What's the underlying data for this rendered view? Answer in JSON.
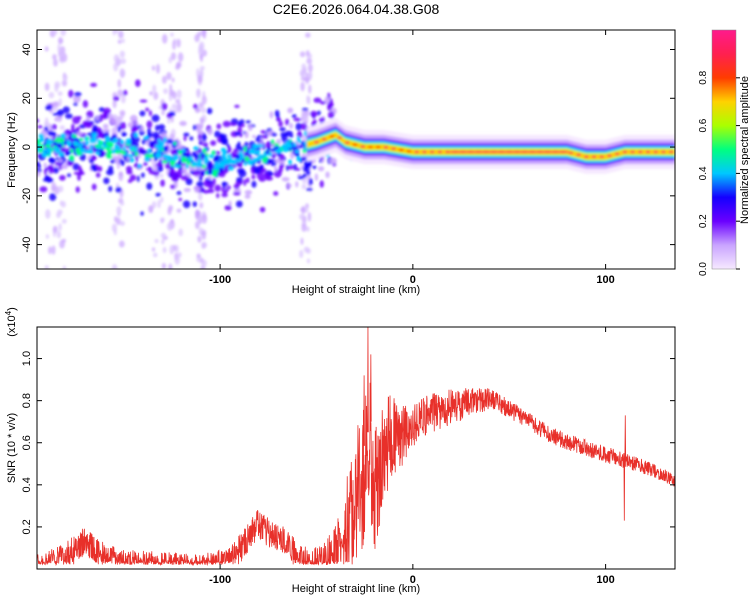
{
  "figure_title": "C2E6.2026.064.04.38.G08",
  "chart_data": [
    {
      "type": "heatmap",
      "panel": "top",
      "xlabel": "Height of straight line (km)",
      "ylabel": "Frequency (Hz)",
      "xlim": [
        -195,
        136
      ],
      "ylim": [
        -50,
        48
      ],
      "xticks": [
        -100,
        0,
        100
      ],
      "xtick_labels": [
        "-100",
        "0",
        "100"
      ],
      "yticks": [
        -40,
        -20,
        0,
        20,
        40
      ],
      "ytick_labels": [
        "-40",
        "-20",
        "0",
        "20",
        "40"
      ],
      "colorbar": {
        "label": "Normalized spectral amplitude",
        "range": [
          0,
          1
        ],
        "ticks": [
          0,
          0.2,
          0.4,
          0.6,
          0.8
        ],
        "tick_labels": [
          "0.0",
          "0.2",
          "0.4",
          "0.6",
          "0.8"
        ],
        "colors": [
          "#f6e9ff",
          "#c9a4ff",
          "#6a00ff",
          "#1400ff",
          "#00c8ff",
          "#00ff80",
          "#aaff00",
          "#ffd200",
          "#ff3c00",
          "#ff2050",
          "#ff1a8c"
        ]
      },
      "ridge": {
        "x": [
          -195,
          -170,
          -150,
          -130,
          -110,
          -100,
          -80,
          -60,
          -50,
          -40,
          -35,
          -25,
          -15,
          0,
          10,
          30,
          60,
          80,
          90,
          100,
          110,
          136
        ],
        "y": [
          0,
          1,
          0,
          -2,
          -6,
          -7,
          -3,
          0,
          2,
          5,
          2,
          0,
          0,
          -2,
          -2,
          -2,
          -2,
          -2,
          -4,
          -4,
          -2,
          -2
        ]
      }
    },
    {
      "type": "line",
      "panel": "bottom",
      "xlabel": "Height of straight line (km)",
      "ylabel": "SNR (10 * v/v)",
      "scale_label": "(x10",
      "scale_exp": "4",
      "scale_close": ")",
      "xlim": [
        -195,
        136
      ],
      "ylim": [
        0,
        1.15
      ],
      "xticks": [
        -100,
        0,
        100
      ],
      "xtick_labels": [
        "-100",
        "0",
        "100"
      ],
      "yticks": [
        0.2,
        0.4,
        0.6,
        0.8,
        1.0
      ],
      "ytick_labels": [
        "0.2",
        "0.4",
        "0.6",
        "0.8",
        "1.0"
      ],
      "color": "#e8302a",
      "envelope": {
        "x": [
          -195,
          -185,
          -175,
          -170,
          -165,
          -160,
          -150,
          -130,
          -110,
          -95,
          -90,
          -85,
          -80,
          -75,
          -70,
          -65,
          -60,
          -52,
          -45,
          -40,
          -35,
          -30,
          -25,
          -22,
          -20,
          -15,
          -10,
          -5,
          0,
          5,
          10,
          20,
          30,
          40,
          50,
          60,
          70,
          80,
          90,
          100,
          110,
          120,
          130,
          136
        ],
        "y": [
          0.03,
          0.06,
          0.12,
          0.17,
          0.12,
          0.08,
          0.05,
          0.04,
          0.03,
          0.06,
          0.12,
          0.18,
          0.25,
          0.2,
          0.18,
          0.16,
          0.08,
          0.04,
          0.08,
          0.14,
          0.25,
          0.45,
          0.6,
          0.7,
          0.5,
          0.65,
          0.72,
          0.7,
          0.72,
          0.76,
          0.78,
          0.8,
          0.82,
          0.83,
          0.78,
          0.72,
          0.66,
          0.62,
          0.59,
          0.56,
          0.53,
          0.5,
          0.46,
          0.43
        ]
      },
      "noise": {
        "x": [
          -195,
          -60,
          -40,
          -35,
          -25,
          -20,
          -10,
          0,
          20,
          40,
          60,
          100,
          136
        ],
        "y": [
          0.07,
          0.07,
          0.12,
          0.25,
          0.35,
          0.3,
          0.2,
          0.1,
          0.09,
          0.05,
          0.04,
          0.04,
          0.03
        ]
      },
      "spikes": [
        {
          "x": -23.5,
          "y": 1.15
        },
        {
          "x": -22.0,
          "y": 1.02
        },
        {
          "x": -25.5,
          "y": 0.92
        },
        {
          "x": 110.0,
          "y": 0.73
        },
        {
          "x": 109.5,
          "y": 0.23
        }
      ]
    }
  ]
}
